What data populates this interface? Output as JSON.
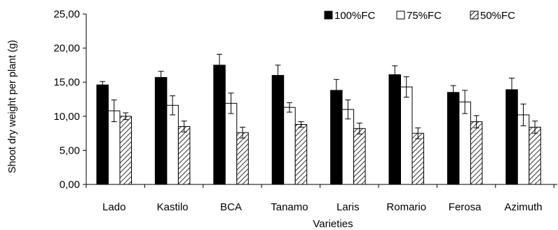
{
  "chart_data": {
    "type": "bar",
    "title": "",
    "xlabel": "Varieties",
    "ylabel": "Shoot dry weight per plant (g)",
    "ylim": [
      0,
      25
    ],
    "yticks": [
      "0,00",
      "5,00",
      "10,00",
      "15,00",
      "20,00",
      "25,00"
    ],
    "ytick_values": [
      0,
      5,
      10,
      15,
      20,
      25
    ],
    "grid": false,
    "legend_position": "top-right",
    "categories": [
      "Lado",
      "Kastilo",
      "BCA",
      "Tanamo",
      "Laris",
      "Romario",
      "Ferosa",
      "Azimuth"
    ],
    "series": [
      {
        "name": "100%FC",
        "fill": "solid-black",
        "values": [
          14.6,
          15.7,
          17.5,
          16.0,
          13.8,
          16.1,
          13.5,
          13.9
        ],
        "errors": [
          0.5,
          0.9,
          1.6,
          1.5,
          1.6,
          1.3,
          1.0,
          1.7
        ]
      },
      {
        "name": "75%FC",
        "fill": "white",
        "values": [
          10.8,
          11.6,
          11.9,
          11.3,
          11.0,
          14.3,
          12.1,
          10.2
        ],
        "errors": [
          1.6,
          1.4,
          1.5,
          0.7,
          1.4,
          1.5,
          1.7,
          1.6
        ]
      },
      {
        "name": "50%FC",
        "fill": "diagonal-hatch",
        "values": [
          10.0,
          8.5,
          7.6,
          8.8,
          8.2,
          7.5,
          9.2,
          8.4
        ],
        "errors": [
          0.5,
          0.8,
          0.8,
          0.4,
          0.8,
          0.8,
          0.9,
          0.9
        ]
      }
    ],
    "colors": {
      "bar_stroke": "#000000",
      "solid_fill": "#000000",
      "open_fill": "#ffffff",
      "hatch_line": "#000000"
    }
  }
}
